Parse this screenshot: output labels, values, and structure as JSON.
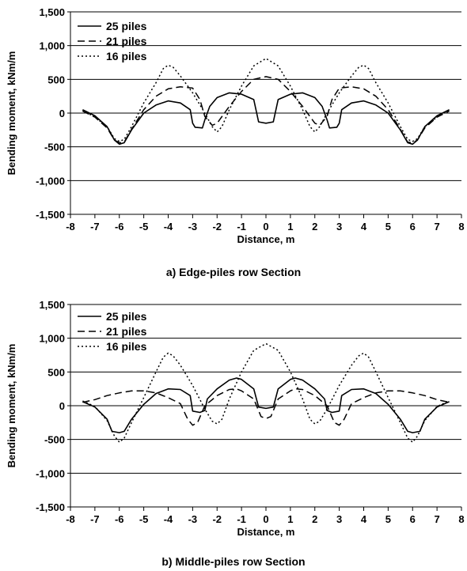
{
  "chart_data": [
    {
      "type": "line",
      "caption": "a) Edge-piles row Section",
      "xlabel": "Distance, m",
      "ylabel": "Bending moment, kNm/m",
      "xlim": [
        -8,
        8
      ],
      "ylim": [
        -1500,
        1500
      ],
      "xticks": [
        -8,
        -7,
        -6,
        -5,
        -4,
        -3,
        -2,
        -1,
        0,
        1,
        2,
        3,
        4,
        5,
        6,
        7,
        8
      ],
      "yticks": [
        "-1,500",
        "-1,000",
        "-500",
        "0",
        "500",
        "1,000",
        "1,500"
      ],
      "yticks_values": [
        -1500,
        -1000,
        -500,
        0,
        500,
        1000,
        1500
      ],
      "grid": "horizontal",
      "legend": "top-left",
      "series": [
        {
          "name": "25 piles",
          "style": "solid",
          "points": [
            [
              -7.5,
              50
            ],
            [
              -7.0,
              -40
            ],
            [
              -6.5,
              -200
            ],
            [
              -6.2,
              -400
            ],
            [
              -6.0,
              -460
            ],
            [
              -5.8,
              -440
            ],
            [
              -5.5,
              -250
            ],
            [
              -5.0,
              0
            ],
            [
              -4.5,
              120
            ],
            [
              -4.0,
              180
            ],
            [
              -3.5,
              150
            ],
            [
              -3.1,
              50
            ],
            [
              -3.0,
              -150
            ],
            [
              -2.9,
              -210
            ],
            [
              -2.6,
              -220
            ],
            [
              -2.5,
              -100
            ],
            [
              -2.3,
              100
            ],
            [
              -2.0,
              230
            ],
            [
              -1.5,
              300
            ],
            [
              -1.0,
              280
            ],
            [
              -0.5,
              200
            ],
            [
              -0.3,
              -130
            ],
            [
              0.0,
              -150
            ],
            [
              0.3,
              -130
            ],
            [
              0.5,
              200
            ],
            [
              1.0,
              280
            ],
            [
              1.5,
              300
            ],
            [
              2.0,
              230
            ],
            [
              2.3,
              100
            ],
            [
              2.5,
              -100
            ],
            [
              2.6,
              -220
            ],
            [
              2.9,
              -210
            ],
            [
              3.0,
              -150
            ],
            [
              3.1,
              50
            ],
            [
              3.5,
              150
            ],
            [
              4.0,
              180
            ],
            [
              4.5,
              120
            ],
            [
              5.0,
              0
            ],
            [
              5.5,
              -250
            ],
            [
              5.8,
              -440
            ],
            [
              6.0,
              -460
            ],
            [
              6.2,
              -400
            ],
            [
              6.5,
              -200
            ],
            [
              7.0,
              -40
            ],
            [
              7.5,
              50
            ]
          ]
        },
        {
          "name": "21 piles",
          "style": "dashed",
          "points": [
            [
              -7.5,
              30
            ],
            [
              -7.0,
              -60
            ],
            [
              -6.5,
              -220
            ],
            [
              -6.2,
              -400
            ],
            [
              -6.0,
              -440
            ],
            [
              -5.8,
              -430
            ],
            [
              -5.5,
              -240
            ],
            [
              -5.0,
              50
            ],
            [
              -4.5,
              250
            ],
            [
              -4.0,
              360
            ],
            [
              -3.5,
              390
            ],
            [
              -3.0,
              370
            ],
            [
              -2.7,
              200
            ],
            [
              -2.5,
              -50
            ],
            [
              -2.2,
              -180
            ],
            [
              -2.0,
              -150
            ],
            [
              -1.5,
              100
            ],
            [
              -1.0,
              320
            ],
            [
              -0.5,
              500
            ],
            [
              0.0,
              540
            ],
            [
              0.5,
              500
            ],
            [
              1.0,
              320
            ],
            [
              1.5,
              100
            ],
            [
              2.0,
              -150
            ],
            [
              2.2,
              -180
            ],
            [
              2.5,
              -50
            ],
            [
              2.7,
              200
            ],
            [
              3.0,
              370
            ],
            [
              3.5,
              390
            ],
            [
              4.0,
              360
            ],
            [
              4.5,
              250
            ],
            [
              5.0,
              50
            ],
            [
              5.5,
              -240
            ],
            [
              5.8,
              -430
            ],
            [
              6.0,
              -440
            ],
            [
              6.2,
              -400
            ],
            [
              6.5,
              -220
            ],
            [
              7.0,
              -60
            ],
            [
              7.5,
              30
            ]
          ]
        },
        {
          "name": "16 piles",
          "style": "dotted",
          "points": [
            [
              -7.5,
              40
            ],
            [
              -7.0,
              -60
            ],
            [
              -6.5,
              -200
            ],
            [
              -6.2,
              -380
            ],
            [
              -6.0,
              -420
            ],
            [
              -5.8,
              -390
            ],
            [
              -5.5,
              -200
            ],
            [
              -5.0,
              150
            ],
            [
              -4.5,
              450
            ],
            [
              -4.2,
              660
            ],
            [
              -4.0,
              710
            ],
            [
              -3.8,
              680
            ],
            [
              -3.5,
              550
            ],
            [
              -3.0,
              300
            ],
            [
              -2.5,
              0
            ],
            [
              -2.2,
              -200
            ],
            [
              -2.0,
              -280
            ],
            [
              -1.8,
              -200
            ],
            [
              -1.5,
              50
            ],
            [
              -1.0,
              400
            ],
            [
              -0.5,
              700
            ],
            [
              0.0,
              810
            ],
            [
              0.5,
              700
            ],
            [
              1.0,
              400
            ],
            [
              1.5,
              50
            ],
            [
              1.8,
              -200
            ],
            [
              2.0,
              -280
            ],
            [
              2.2,
              -200
            ],
            [
              2.5,
              0
            ],
            [
              3.0,
              300
            ],
            [
              3.5,
              550
            ],
            [
              3.8,
              680
            ],
            [
              4.0,
              710
            ],
            [
              4.2,
              660
            ],
            [
              4.5,
              450
            ],
            [
              5.0,
              150
            ],
            [
              5.5,
              -200
            ],
            [
              5.8,
              -390
            ],
            [
              6.0,
              -420
            ],
            [
              6.2,
              -380
            ],
            [
              6.5,
              -200
            ],
            [
              7.0,
              -60
            ],
            [
              7.5,
              40
            ]
          ]
        }
      ]
    },
    {
      "type": "line",
      "caption": "b) Middle-piles row Section",
      "xlabel": "Distance, m",
      "ylabel": "Bending moment, kNm/m",
      "xlim": [
        -8,
        8
      ],
      "ylim": [
        -1500,
        1500
      ],
      "xticks": [
        -8,
        -7,
        -6,
        -5,
        -4,
        -3,
        -2,
        -1,
        0,
        1,
        2,
        3,
        4,
        5,
        6,
        7,
        8
      ],
      "yticks": [
        "-1,500",
        "-1,000",
        "-500",
        "0",
        "500",
        "1,000",
        "1,500"
      ],
      "yticks_values": [
        -1500,
        -1000,
        -500,
        0,
        500,
        1000,
        1500
      ],
      "grid": "horizontal",
      "legend": "top-left",
      "series": [
        {
          "name": "25 piles",
          "style": "solid",
          "points": [
            [
              -7.5,
              60
            ],
            [
              -7.0,
              -20
            ],
            [
              -6.5,
              -200
            ],
            [
              -6.3,
              -380
            ],
            [
              -6.0,
              -400
            ],
            [
              -5.8,
              -380
            ],
            [
              -5.5,
              -200
            ],
            [
              -5.0,
              20
            ],
            [
              -4.5,
              180
            ],
            [
              -4.0,
              250
            ],
            [
              -3.5,
              240
            ],
            [
              -3.1,
              150
            ],
            [
              -3.0,
              -80
            ],
            [
              -2.7,
              -100
            ],
            [
              -2.5,
              -70
            ],
            [
              -2.4,
              100
            ],
            [
              -2.0,
              250
            ],
            [
              -1.5,
              380
            ],
            [
              -1.2,
              410
            ],
            [
              -1.0,
              390
            ],
            [
              -0.5,
              250
            ],
            [
              -0.3,
              -20
            ],
            [
              0.0,
              -40
            ],
            [
              0.3,
              -20
            ],
            [
              0.5,
              250
            ],
            [
              1.0,
              390
            ],
            [
              1.2,
              410
            ],
            [
              1.5,
              380
            ],
            [
              2.0,
              250
            ],
            [
              2.4,
              100
            ],
            [
              2.5,
              -70
            ],
            [
              2.7,
              -100
            ],
            [
              3.0,
              -80
            ],
            [
              3.1,
              150
            ],
            [
              3.5,
              240
            ],
            [
              4.0,
              250
            ],
            [
              4.5,
              180
            ],
            [
              5.0,
              20
            ],
            [
              5.5,
              -200
            ],
            [
              5.8,
              -380
            ],
            [
              6.0,
              -400
            ],
            [
              6.3,
              -380
            ],
            [
              6.5,
              -200
            ],
            [
              7.0,
              -20
            ],
            [
              7.5,
              60
            ]
          ]
        },
        {
          "name": "21 piles",
          "style": "dashed",
          "points": [
            [
              -7.5,
              50
            ],
            [
              -7.0,
              90
            ],
            [
              -6.5,
              150
            ],
            [
              -6.0,
              190
            ],
            [
              -5.5,
              220
            ],
            [
              -5.0,
              220
            ],
            [
              -4.5,
              190
            ],
            [
              -4.0,
              120
            ],
            [
              -3.5,
              30
            ],
            [
              -3.2,
              -200
            ],
            [
              -3.0,
              -290
            ],
            [
              -2.8,
              -250
            ],
            [
              -2.5,
              0
            ],
            [
              -2.0,
              150
            ],
            [
              -1.5,
              240
            ],
            [
              -1.2,
              250
            ],
            [
              -1.0,
              220
            ],
            [
              -0.5,
              100
            ],
            [
              -0.2,
              -160
            ],
            [
              0.0,
              -190
            ],
            [
              0.2,
              -160
            ],
            [
              0.5,
              100
            ],
            [
              1.0,
              220
            ],
            [
              1.2,
              250
            ],
            [
              1.5,
              240
            ],
            [
              2.0,
              150
            ],
            [
              2.5,
              0
            ],
            [
              2.8,
              -250
            ],
            [
              3.0,
              -290
            ],
            [
              3.2,
              -200
            ],
            [
              3.5,
              30
            ],
            [
              4.0,
              120
            ],
            [
              4.5,
              190
            ],
            [
              5.0,
              220
            ],
            [
              5.5,
              220
            ],
            [
              6.0,
              190
            ],
            [
              6.5,
              150
            ],
            [
              7.0,
              90
            ],
            [
              7.5,
              50
            ]
          ]
        },
        {
          "name": "16 piles",
          "style": "dotted",
          "points": [
            [
              -7.5,
              70
            ],
            [
              -7.0,
              -10
            ],
            [
              -6.5,
              -220
            ],
            [
              -6.2,
              -450
            ],
            [
              -6.0,
              -540
            ],
            [
              -5.8,
              -480
            ],
            [
              -5.5,
              -250
            ],
            [
              -5.0,
              120
            ],
            [
              -4.5,
              500
            ],
            [
              -4.2,
              720
            ],
            [
              -4.0,
              780
            ],
            [
              -3.8,
              740
            ],
            [
              -3.5,
              600
            ],
            [
              -3.0,
              300
            ],
            [
              -2.5,
              -50
            ],
            [
              -2.2,
              -230
            ],
            [
              -2.0,
              -270
            ],
            [
              -1.8,
              -200
            ],
            [
              -1.5,
              100
            ],
            [
              -1.0,
              500
            ],
            [
              -0.5,
              820
            ],
            [
              0.0,
              920
            ],
            [
              0.5,
              820
            ],
            [
              1.0,
              500
            ],
            [
              1.5,
              100
            ],
            [
              1.8,
              -200
            ],
            [
              2.0,
              -270
            ],
            [
              2.2,
              -230
            ],
            [
              2.5,
              -50
            ],
            [
              3.0,
              300
            ],
            [
              3.5,
              600
            ],
            [
              3.8,
              740
            ],
            [
              4.0,
              780
            ],
            [
              4.2,
              720
            ],
            [
              4.5,
              500
            ],
            [
              5.0,
              120
            ],
            [
              5.5,
              -250
            ],
            [
              5.8,
              -480
            ],
            [
              6.0,
              -540
            ],
            [
              6.2,
              -450
            ],
            [
              6.5,
              -220
            ],
            [
              7.0,
              -10
            ],
            [
              7.5,
              70
            ]
          ]
        }
      ]
    }
  ]
}
